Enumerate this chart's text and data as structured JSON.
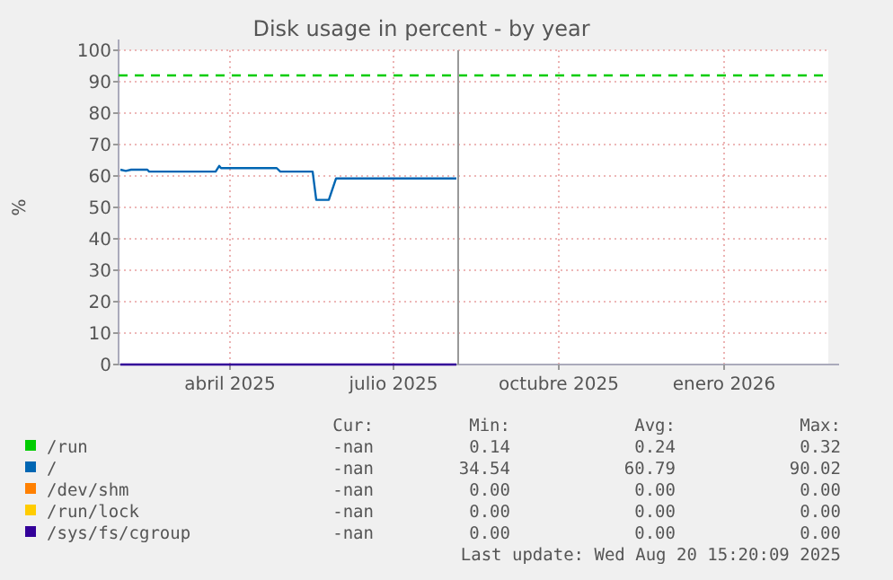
{
  "chart_data": {
    "type": "line",
    "title": "Disk usage in percent - by year",
    "ylabel": "%",
    "xlim": [
      "2025-02-12",
      "2026-03-14"
    ],
    "xticks": [
      {
        "value": "2025-04-15",
        "label": "abril 2025"
      },
      {
        "value": "2025-07-15",
        "label": "julio 2025"
      },
      {
        "value": "2025-10-15",
        "label": "octubre 2025"
      },
      {
        "value": "2026-01-15",
        "label": "enero 2026"
      }
    ],
    "ylim": [
      0,
      100
    ],
    "yticks": [
      0,
      10,
      20,
      30,
      40,
      50,
      60,
      70,
      80,
      90,
      100
    ],
    "grid": true,
    "legend": "bottom",
    "line_style": "solid",
    "marker": "none",
    "series": [
      {
        "name": "/run",
        "color": "#00cc00",
        "values": [
          null
        ]
      },
      {
        "name": "/",
        "color": "#0066b3",
        "x": [
          "2025-02-13",
          "2025-02-16",
          "2025-02-19",
          "2025-02-28",
          "2025-03-01",
          "2025-04-07",
          "2025-04-09",
          "2025-04-10",
          "2025-05-11",
          "2025-05-13",
          "2025-05-31",
          "2025-06-02",
          "2025-06-09",
          "2025-06-13",
          "2025-08-19"
        ],
        "values": [
          62.0,
          61.6,
          62.0,
          62.0,
          61.4,
          61.4,
          63.2,
          62.5,
          62.5,
          61.4,
          61.4,
          52.4,
          52.4,
          59.2,
          59.2
        ]
      },
      {
        "name": "/dev/shm",
        "color": "#ff8000",
        "values": [
          null
        ]
      },
      {
        "name": "/run/lock",
        "color": "#ffcc00",
        "values": [
          null
        ]
      },
      {
        "name": "/sys/fs/cgroup",
        "color": "#330099",
        "x": [
          "2025-02-13",
          "2025-08-19"
        ],
        "values": [
          0,
          0
        ]
      }
    ],
    "ref_lines": [
      {
        "axis": "y",
        "value": 92,
        "color": "#00cc00",
        "line_style": "dashed"
      },
      {
        "axis": "x",
        "value": "2025-08-20",
        "color": "#999999",
        "line_style": "solid"
      }
    ],
    "annotations": [
      "Cur:",
      "Min:",
      "Avg:",
      "Max:",
      "-nan",
      "0.14",
      "0.24",
      "0.32",
      "-nan",
      "34.54",
      "60.79",
      "90.02",
      "-nan",
      "0.00",
      "0.00",
      "0.00",
      "-nan",
      "0.00",
      "0.00",
      "0.00",
      "-nan",
      "0.00",
      "0.00",
      "0.00",
      "Last update: Wed Aug 20 15:20:09 2025"
    ]
  }
}
